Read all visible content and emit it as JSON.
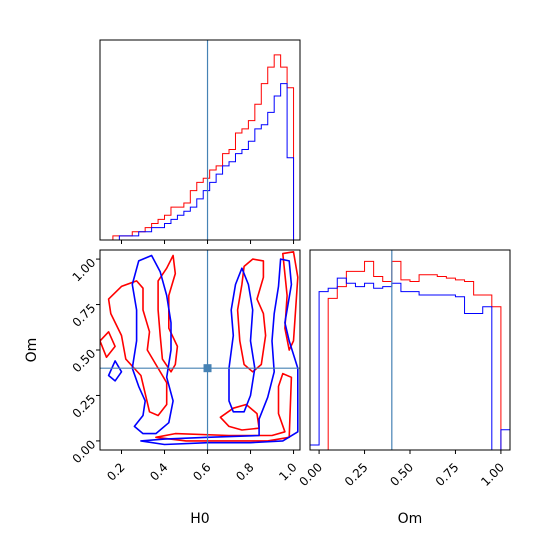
{
  "chart_data": [
    {
      "panel": "H0 marginal",
      "type": "histogram",
      "xlim": [
        0.1,
        1.03
      ],
      "show_x_tick_labels": false,
      "x_ticks": [
        0.2,
        0.4,
        0.6,
        0.8,
        1.0
      ],
      "truth": 0.6,
      "truth_color": "#4682b4",
      "bin_edges": [
        0.1,
        0.13,
        0.16,
        0.19,
        0.22,
        0.25,
        0.28,
        0.31,
        0.34,
        0.37,
        0.4,
        0.43,
        0.46,
        0.49,
        0.52,
        0.55,
        0.58,
        0.61,
        0.64,
        0.67,
        0.7,
        0.73,
        0.76,
        0.79,
        0.82,
        0.85,
        0.88,
        0.91,
        0.94,
        0.97,
        1.0
      ],
      "series": [
        {
          "color": "#ff0000",
          "values": [
            0,
            0,
            1,
            1,
            1,
            2,
            2,
            3,
            4,
            5,
            6,
            8,
            8,
            9,
            12,
            14,
            15,
            17,
            18,
            21,
            22,
            26,
            27,
            29,
            33,
            38,
            42,
            45,
            42,
            37
          ]
        },
        {
          "color": "#0000ff",
          "values": [
            0,
            0,
            0,
            1,
            1,
            1,
            2,
            2,
            3,
            3,
            4,
            5,
            6,
            7,
            8,
            10,
            12,
            14,
            16,
            18,
            19,
            21,
            22,
            24,
            27,
            28,
            31,
            35,
            38,
            20
          ]
        }
      ]
    },
    {
      "panel": "H0 vs Om joint",
      "type": "contour",
      "xlim": [
        0.1,
        1.03
      ],
      "ylim": [
        -0.05,
        1.05
      ],
      "x_ticks": [
        "0.2",
        "0.4",
        "0.6",
        "0.8",
        "1.0"
      ],
      "y_ticks": [
        "0.00",
        "0.25",
        "0.50",
        "0.75",
        "1.00"
      ],
      "x_tick_values": [
        0.2,
        0.4,
        0.6,
        0.8,
        1.0
      ],
      "y_tick_values": [
        0.0,
        0.25,
        0.5,
        0.75,
        1.0
      ],
      "xlabel": "H0",
      "ylabel": "Om",
      "truth": {
        "x": 0.6,
        "y": 0.4
      },
      "truth_color": "#4682b4",
      "series": [
        {
          "color": "#ff0000",
          "contours": [
            [
              [
                0.36,
                0.02
              ],
              [
                0.5,
                0.0
              ],
              [
                0.7,
                0.0
              ],
              [
                0.88,
                0.0
              ],
              [
                0.98,
                0.02
              ],
              [
                0.99,
                0.35
              ],
              [
                0.95,
                0.37
              ],
              [
                0.93,
                0.3
              ],
              [
                0.93,
                0.15
              ],
              [
                0.96,
                0.05
              ],
              [
                0.9,
                0.03
              ],
              [
                0.7,
                0.03
              ],
              [
                0.45,
                0.04
              ],
              [
                0.36,
                0.02
              ]
            ],
            [
              [
                0.14,
                0.78
              ],
              [
                0.2,
                0.85
              ],
              [
                0.27,
                0.88
              ],
              [
                0.3,
                0.84
              ],
              [
                0.3,
                0.72
              ],
              [
                0.33,
                0.6
              ],
              [
                0.32,
                0.5
              ],
              [
                0.36,
                0.42
              ],
              [
                0.41,
                0.32
              ],
              [
                0.41,
                0.2
              ],
              [
                0.37,
                0.14
              ],
              [
                0.33,
                0.16
              ],
              [
                0.31,
                0.26
              ],
              [
                0.29,
                0.36
              ],
              [
                0.22,
                0.45
              ],
              [
                0.2,
                0.58
              ],
              [
                0.15,
                0.7
              ],
              [
                0.14,
                0.78
              ]
            ],
            [
              [
                0.37,
                0.88
              ],
              [
                0.41,
                0.95
              ],
              [
                0.44,
                1.02
              ],
              [
                0.45,
                0.92
              ],
              [
                0.42,
                0.8
              ],
              [
                0.42,
                0.62
              ],
              [
                0.46,
                0.52
              ],
              [
                0.45,
                0.42
              ],
              [
                0.43,
                0.38
              ],
              [
                0.39,
                0.45
              ],
              [
                0.38,
                0.58
              ],
              [
                0.37,
                0.72
              ],
              [
                0.37,
                0.88
              ]
            ],
            [
              [
                0.77,
                0.96
              ],
              [
                0.81,
                1.0
              ],
              [
                0.86,
                0.99
              ],
              [
                0.86,
                0.9
              ],
              [
                0.83,
                0.78
              ],
              [
                0.86,
                0.7
              ],
              [
                0.87,
                0.58
              ],
              [
                0.85,
                0.42
              ],
              [
                0.81,
                0.38
              ],
              [
                0.77,
                0.42
              ],
              [
                0.75,
                0.55
              ],
              [
                0.74,
                0.72
              ],
              [
                0.76,
                0.86
              ],
              [
                0.77,
                0.96
              ]
            ],
            [
              [
                0.95,
                1.03
              ],
              [
                1.0,
                1.04
              ],
              [
                1.02,
                0.9
              ],
              [
                1.0,
                0.55
              ],
              [
                0.98,
                0.5
              ],
              [
                0.96,
                0.62
              ],
              [
                0.97,
                0.8
              ],
              [
                0.95,
                1.03
              ]
            ],
            [
              [
                0.66,
                0.13
              ],
              [
                0.7,
                0.08
              ],
              [
                0.76,
                0.06
              ],
              [
                0.84,
                0.07
              ],
              [
                0.83,
                0.15
              ],
              [
                0.78,
                0.2
              ],
              [
                0.72,
                0.18
              ],
              [
                0.66,
                0.13
              ]
            ],
            [
              [
                0.1,
                0.55
              ],
              [
                0.14,
                0.6
              ],
              [
                0.17,
                0.52
              ],
              [
                0.13,
                0.46
              ],
              [
                0.1,
                0.55
              ]
            ]
          ]
        },
        {
          "color": "#0000ff",
          "contours": [
            [
              [
                0.29,
                0.0
              ],
              [
                0.4,
                -0.02
              ],
              [
                0.6,
                -0.01
              ],
              [
                0.8,
                -0.01
              ],
              [
                0.95,
                0.0
              ],
              [
                1.02,
                0.05
              ],
              [
                1.02,
                0.4
              ],
              [
                0.98,
                0.55
              ],
              [
                0.96,
                0.65
              ],
              [
                0.99,
                0.86
              ],
              [
                0.98,
                0.99
              ],
              [
                0.94,
                1.0
              ],
              [
                0.93,
                0.85
              ],
              [
                0.91,
                0.7
              ],
              [
                0.9,
                0.55
              ],
              [
                0.91,
                0.38
              ],
              [
                0.88,
                0.24
              ],
              [
                0.84,
                0.12
              ],
              [
                0.84,
                0.03
              ],
              [
                0.6,
                0.02
              ],
              [
                0.4,
                0.01
              ],
              [
                0.29,
                0.0
              ]
            ],
            [
              [
                0.26,
                0.08
              ],
              [
                0.3,
                0.14
              ],
              [
                0.31,
                0.22
              ],
              [
                0.28,
                0.3
              ],
              [
                0.25,
                0.4
              ],
              [
                0.27,
                0.55
              ],
              [
                0.27,
                0.72
              ],
              [
                0.25,
                0.86
              ],
              [
                0.28,
                0.99
              ],
              [
                0.34,
                1.02
              ],
              [
                0.38,
                0.93
              ],
              [
                0.41,
                0.8
              ],
              [
                0.43,
                0.65
              ],
              [
                0.43,
                0.5
              ],
              [
                0.41,
                0.35
              ],
              [
                0.44,
                0.22
              ],
              [
                0.42,
                0.1
              ],
              [
                0.36,
                0.04
              ],
              [
                0.3,
                0.04
              ],
              [
                0.26,
                0.08
              ]
            ],
            [
              [
                0.7,
                0.22
              ],
              [
                0.7,
                0.4
              ],
              [
                0.72,
                0.58
              ],
              [
                0.71,
                0.72
              ],
              [
                0.73,
                0.86
              ],
              [
                0.76,
                0.95
              ],
              [
                0.79,
                0.86
              ],
              [
                0.81,
                0.72
              ],
              [
                0.8,
                0.55
              ],
              [
                0.82,
                0.4
              ],
              [
                0.8,
                0.25
              ],
              [
                0.77,
                0.16
              ],
              [
                0.72,
                0.16
              ],
              [
                0.7,
                0.22
              ]
            ],
            [
              [
                0.14,
                0.36
              ],
              [
                0.17,
                0.44
              ],
              [
                0.2,
                0.38
              ],
              [
                0.17,
                0.33
              ],
              [
                0.14,
                0.36
              ]
            ]
          ]
        }
      ]
    },
    {
      "panel": "Om marginal",
      "type": "histogram",
      "xlim": [
        -0.05,
        1.05
      ],
      "x_ticks": [
        "0.00",
        "0.25",
        "0.50",
        "0.75",
        "1.00"
      ],
      "x_tick_values": [
        0.0,
        0.25,
        0.5,
        0.75,
        1.0
      ],
      "xlabel": "Om",
      "truth": 0.4,
      "truth_color": "#4682b4",
      "bin_edges": [
        -0.05,
        0.0,
        0.05,
        0.1,
        0.15,
        0.2,
        0.25,
        0.3,
        0.35,
        0.4,
        0.45,
        0.5,
        0.55,
        0.6,
        0.65,
        0.7,
        0.75,
        0.8,
        0.85,
        0.9,
        0.95,
        1.0,
        1.05
      ],
      "series": [
        {
          "color": "#ff0000",
          "values": [
            0,
            0,
            90,
            97,
            106,
            106,
            112,
            103,
            100,
            112,
            101,
            100,
            104,
            104,
            103,
            102,
            101,
            100,
            92,
            92,
            85,
            0
          ]
        },
        {
          "color": "#0000ff",
          "values": [
            3,
            94,
            96,
            102,
            99,
            97,
            99,
            96,
            97,
            99,
            94,
            94,
            92,
            92,
            92,
            92,
            91,
            81,
            81,
            85,
            0,
            12
          ]
        }
      ]
    }
  ]
}
